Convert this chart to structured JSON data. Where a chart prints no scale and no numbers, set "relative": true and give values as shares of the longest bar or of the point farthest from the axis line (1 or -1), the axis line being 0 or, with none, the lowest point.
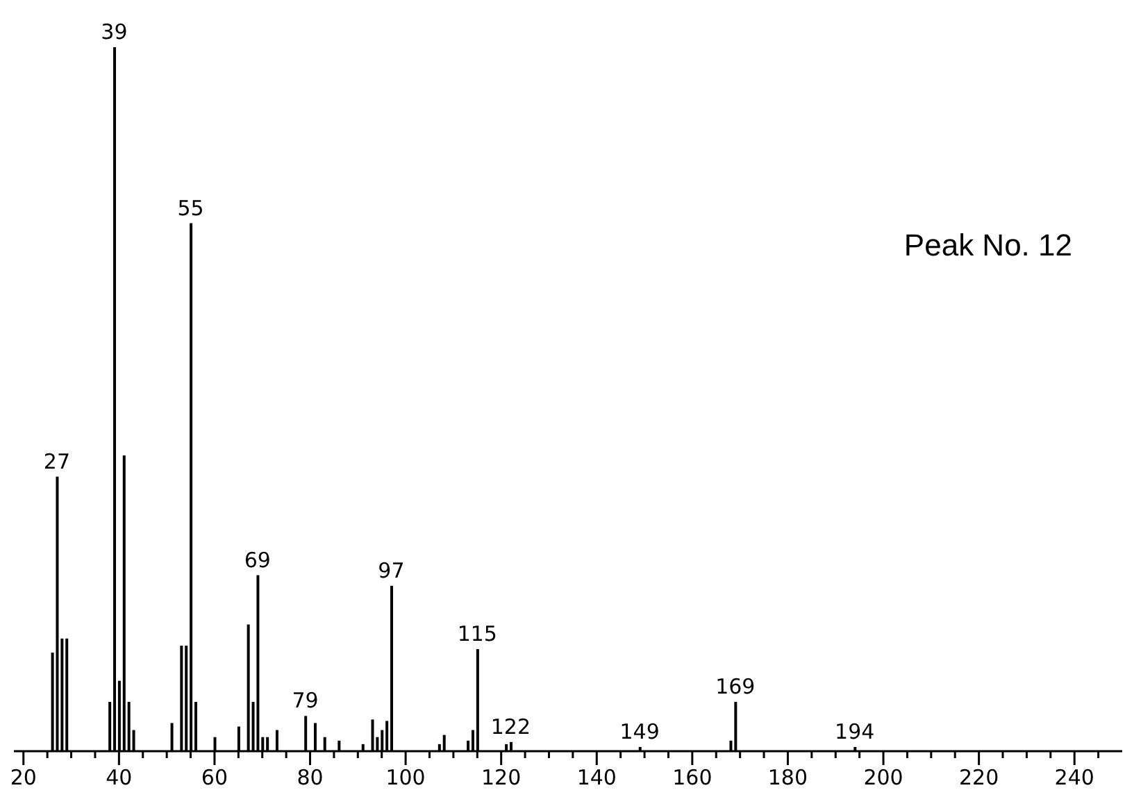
{
  "chart_data": {
    "type": "bar",
    "relative": true,
    "color": "#000000",
    "x": [
      26,
      27,
      28,
      29,
      38,
      39,
      40,
      41,
      42,
      43,
      51,
      53,
      54,
      55,
      56,
      60,
      65,
      67,
      68,
      69,
      70,
      71,
      73,
      79,
      81,
      83,
      86,
      91,
      93,
      94,
      95,
      96,
      97,
      107,
      108,
      113,
      114,
      115,
      121,
      122,
      149,
      168,
      169,
      194
    ],
    "values": [
      0.14,
      0.39,
      0.16,
      0.16,
      0.07,
      1,
      0.1,
      0.42,
      0.07,
      0.03,
      0.04,
      0.15,
      0.15,
      0.75,
      0.07,
      0.02,
      0.035,
      0.18,
      0.07,
      0.25,
      0.02,
      0.02,
      0.03,
      0.05,
      0.04,
      0.02,
      0.015,
      0.01,
      0.045,
      0.02,
      0.03,
      0.043,
      0.235,
      0.01,
      0.023,
      0.015,
      0.03,
      0.145,
      0.01,
      0.013,
      0.006,
      0.015,
      0.07,
      0.006
    ],
    "xlim": [
      18,
      250
    ],
    "xticks": [
      20,
      {
        "value": 25,
        "label": null
      },
      {
        "value": 30,
        "label": null
      },
      {
        "value": 35,
        "label": null
      },
      40,
      {
        "value": 45,
        "label": null
      },
      {
        "value": 50,
        "label": null
      },
      {
        "value": 55,
        "label": null
      },
      60,
      {
        "value": 65,
        "label": null
      },
      {
        "value": 70,
        "label": null
      },
      {
        "value": 75,
        "label": null
      },
      80,
      {
        "value": 85,
        "label": null
      },
      {
        "value": 90,
        "label": null
      },
      {
        "value": 95,
        "label": null
      },
      100,
      {
        "value": 105,
        "label": null
      },
      {
        "value": 110,
        "label": null
      },
      {
        "value": 115,
        "label": null
      },
      120,
      {
        "value": 125,
        "label": null
      },
      {
        "value": 130,
        "label": null
      },
      {
        "value": 135,
        "label": null
      },
      140,
      {
        "value": 145,
        "label": null
      },
      {
        "value": 150,
        "label": null
      },
      {
        "value": 155,
        "label": null
      },
      160,
      {
        "value": 165,
        "label": null
      },
      {
        "value": 170,
        "label": null
      },
      {
        "value": 175,
        "label": null
      },
      180,
      {
        "value": 185,
        "label": null
      },
      {
        "value": 190,
        "label": null
      },
      {
        "value": 195,
        "label": null
      },
      200,
      {
        "value": 205,
        "label": null
      },
      {
        "value": 210,
        "label": null
      },
      {
        "value": 215,
        "label": null
      },
      220,
      {
        "value": 225,
        "label": null
      },
      {
        "value": 230,
        "label": null
      },
      {
        "value": 235,
        "label": null
      },
      240,
      {
        "value": 245,
        "label": null
      }
    ],
    "annotations": [
      {
        "text": "27",
        "x": 27,
        "y": 0.39
      },
      {
        "text": "39",
        "x": 39,
        "y": 1
      },
      {
        "text": "55",
        "x": 55,
        "y": 0.75
      },
      {
        "text": "69",
        "x": 69,
        "y": 0.25
      },
      {
        "text": "79",
        "x": 79,
        "y": 0.05
      },
      {
        "text": "97",
        "x": 97,
        "y": 0.235
      },
      {
        "text": "115",
        "x": 115,
        "y": 0.145
      },
      {
        "text": "122",
        "x": 122,
        "y": 0.013
      },
      {
        "text": "149",
        "x": 149,
        "y": 0.006
      },
      {
        "text": "169",
        "x": 169,
        "y": 0.07
      },
      {
        "text": "194",
        "x": 194,
        "y": 0.006
      },
      "Peak No. 12"
    ]
  }
}
